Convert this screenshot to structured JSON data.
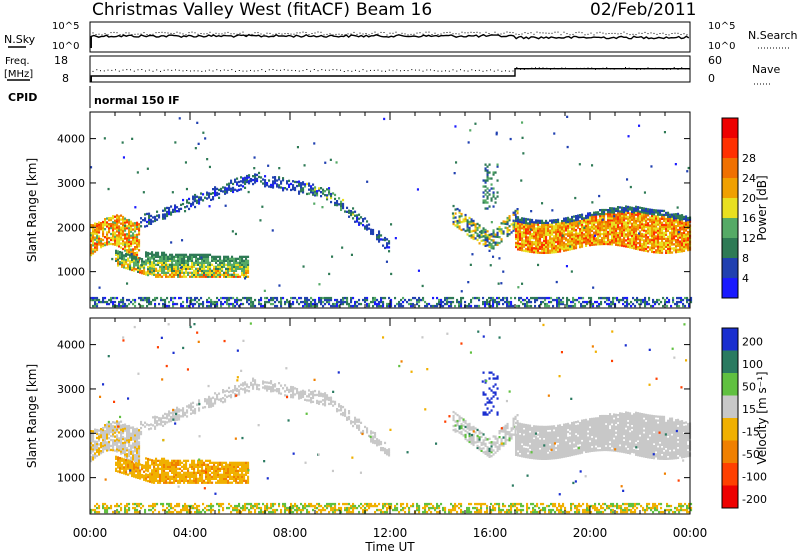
{
  "header": {
    "station": "Christmas Valley West (fitACF)",
    "beam": "Beam 16",
    "date": "02/Feb/2011"
  },
  "noise_panel": {
    "left_label": "N.Sky",
    "right_label": "N.Search",
    "ticks_left": [
      "10^5",
      "10^0"
    ],
    "ticks_right": [
      "10^5",
      "10^0"
    ]
  },
  "freq_panel": {
    "left_label_1": "Freq.",
    "left_label_2": "[MHz]",
    "right_label": "Nave",
    "ticks_left": [
      "18",
      "8"
    ],
    "ticks_right": [
      "60",
      "0"
    ],
    "freq_values_mhz": [
      10.3,
      10.3,
      13.1,
      13.1
    ],
    "freq_times_hours": [
      0.05,
      17.0,
      17.0,
      24.0
    ]
  },
  "cpid": {
    "label": "CPID",
    "value": "normal 150 IF"
  },
  "time_axis": {
    "label": "Time UT",
    "ticks": [
      "00:00",
      "04:00",
      "08:00",
      "12:00",
      "16:00",
      "20:00",
      "00:00"
    ],
    "range_hours": [
      0,
      24
    ]
  },
  "range_axis": {
    "label": "Slant Range [km]",
    "ticks": [
      "1000",
      "2000",
      "3000",
      "4000"
    ],
    "range_km": [
      180,
      4600
    ]
  },
  "power_scale": {
    "label": "Power [dB]",
    "ticks": [
      "4",
      "8",
      "12",
      "16",
      "20",
      "24",
      "28"
    ],
    "colors": [
      "#1a1aff",
      "#2040b0",
      "#2e7a55",
      "#55aa66",
      "#e8e020",
      "#f0a000",
      "#f07000",
      "#ff3000",
      "#ee0000"
    ]
  },
  "velocity_scale": {
    "label": "Velocity [m s⁻¹]",
    "ticks": [
      "200",
      "100",
      "50",
      "15",
      "-15",
      "-50",
      "-100",
      "-200"
    ],
    "colors": [
      "#1a2fd0",
      "#2a7a60",
      "#60c040",
      "#c8c8c8",
      "#f0b000",
      "#f08000",
      "#ff4000",
      "#ee0000"
    ]
  },
  "chart_data": [
    {
      "type": "heatmap",
      "title": "Power [dB]",
      "xlabel": "Time UT",
      "ylabel": "Slant Range [km]",
      "xlim": [
        0,
        24
      ],
      "ylim": [
        180,
        4600
      ],
      "echo_regions": [
        {
          "t": [
            0.0,
            2.0
          ],
          "range_km": [
            1300,
            2200
          ],
          "value": 22
        },
        {
          "t": [
            1.0,
            6.3
          ],
          "range_km": [
            820,
            1500
          ],
          "value": 12
        },
        {
          "t": [
            2.0,
            12.0
          ],
          "range_km": [
            1500,
            3300
          ],
          "value": 6
        },
        {
          "t": [
            14.5,
            17.0
          ],
          "range_km": [
            1200,
            3400
          ],
          "value": 14
        },
        {
          "t": [
            17.0,
            24.0
          ],
          "range_km": [
            1500,
            2500
          ],
          "value": 22
        },
        {
          "t": [
            0.0,
            24.0
          ],
          "range_km": [
            180,
            400
          ],
          "value": 6
        }
      ]
    },
    {
      "type": "heatmap",
      "title": "Velocity [m s^-1]",
      "xlabel": "Time UT",
      "ylabel": "Slant Range [km]",
      "xlim": [
        0,
        24
      ],
      "ylim": [
        180,
        4600
      ],
      "echo_regions": [
        {
          "t": [
            0.0,
            2.0
          ],
          "range_km": [
            1300,
            2200
          ],
          "value": 0
        },
        {
          "t": [
            1.0,
            6.3
          ],
          "range_km": [
            820,
            1500
          ],
          "value": -40
        },
        {
          "t": [
            2.0,
            12.0
          ],
          "range_km": [
            1500,
            3300
          ],
          "value": 0
        },
        {
          "t": [
            14.5,
            17.0
          ],
          "range_km": [
            1200,
            3400
          ],
          "value": 0
        },
        {
          "t": [
            17.0,
            24.0
          ],
          "range_km": [
            1500,
            2500
          ],
          "value": 0
        },
        {
          "t": [
            0.0,
            24.0
          ],
          "range_km": [
            180,
            400
          ],
          "value": -30
        }
      ]
    }
  ]
}
